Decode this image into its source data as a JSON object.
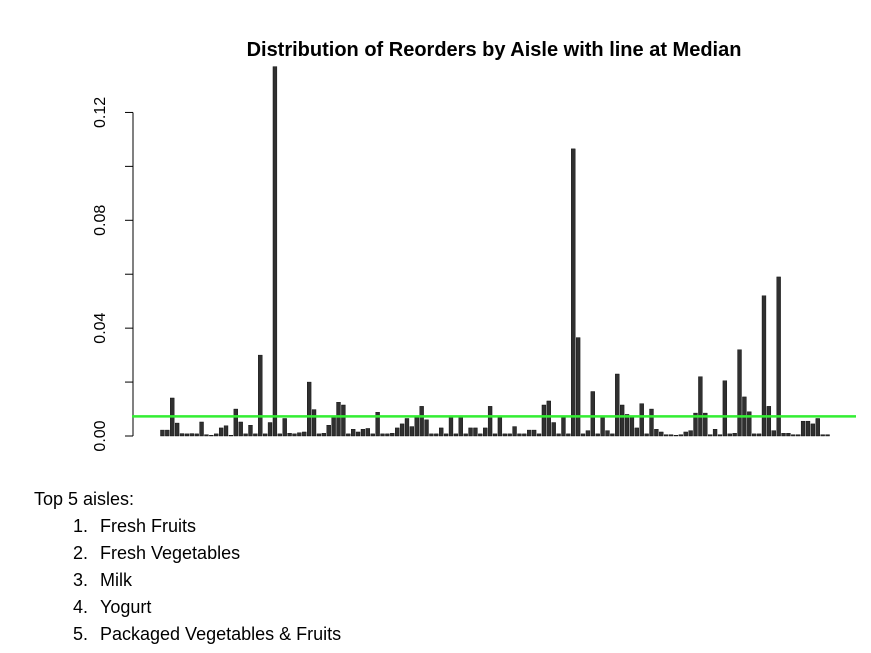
{
  "chart_data": {
    "type": "bar",
    "title": "Distribution of Reorders by Aisle with line at Median",
    "xlabel": "",
    "ylabel": "",
    "ylim": [
      0,
      0.135
    ],
    "yticks": [
      "0.00",
      "0.04",
      "0.08",
      "0.12"
    ],
    "ytick_values": [
      0,
      0.04,
      0.08,
      0.12
    ],
    "bar_color": "#303030",
    "median_line": {
      "value": 0.0073,
      "color": "#33ee33"
    },
    "values": [
      0.0022,
      0.0022,
      0.0141,
      0.0048,
      0.0009,
      0.0008,
      0.0009,
      0.0008,
      0.0052,
      0.0005,
      0.0003,
      0.0008,
      0.003,
      0.0038,
      0.0003,
      0.01,
      0.0052,
      0.0008,
      0.004,
      0.0008,
      0.03,
      0.0008,
      0.005,
      0.137,
      0.0008,
      0.0065,
      0.001,
      0.0008,
      0.0012,
      0.0015,
      0.02,
      0.0098,
      0.0008,
      0.001,
      0.004,
      0.007,
      0.0125,
      0.0115,
      0.0008,
      0.0025,
      0.0015,
      0.0025,
      0.0028,
      0.0008,
      0.0088,
      0.0008,
      0.0008,
      0.001,
      0.003,
      0.0045,
      0.0065,
      0.0035,
      0.0068,
      0.011,
      0.006,
      0.0008,
      0.0008,
      0.003,
      0.0008,
      0.007,
      0.0008,
      0.007,
      0.0008,
      0.003,
      0.003,
      0.0008,
      0.003,
      0.011,
      0.0008,
      0.0068,
      0.0008,
      0.0008,
      0.0035,
      0.0008,
      0.0008,
      0.0022,
      0.0022,
      0.0008,
      0.0115,
      0.013,
      0.005,
      0.0008,
      0.0068,
      0.0008,
      0.1065,
      0.0365,
      0.0008,
      0.002,
      0.0165,
      0.0008,
      0.007,
      0.002,
      0.0008,
      0.023,
      0.0115,
      0.008,
      0.0068,
      0.003,
      0.012,
      0.0008,
      0.01,
      0.0025,
      0.0015,
      0.0005,
      0.0005,
      0.0003,
      0.0005,
      0.0015,
      0.002,
      0.0085,
      0.022,
      0.0085,
      0.0005,
      0.0025,
      0.0005,
      0.0205,
      0.0008,
      0.001,
      0.032,
      0.0145,
      0.009,
      0.0008,
      0.0008,
      0.052,
      0.011,
      0.002,
      0.059,
      0.001,
      0.001,
      0.0005,
      0.0005,
      0.0055,
      0.0055,
      0.0045,
      0.0065,
      0.0005,
      0.0005
    ]
  },
  "top_list": {
    "heading": "Top 5 aisles:",
    "items": [
      {
        "num": "1.",
        "label": "Fresh Fruits"
      },
      {
        "num": "2.",
        "label": "Fresh Vegetables"
      },
      {
        "num": "3.",
        "label": "Milk"
      },
      {
        "num": "4.",
        "label": "Yogurt"
      },
      {
        "num": "5.",
        "label": "Packaged Vegetables & Fruits"
      }
    ]
  }
}
